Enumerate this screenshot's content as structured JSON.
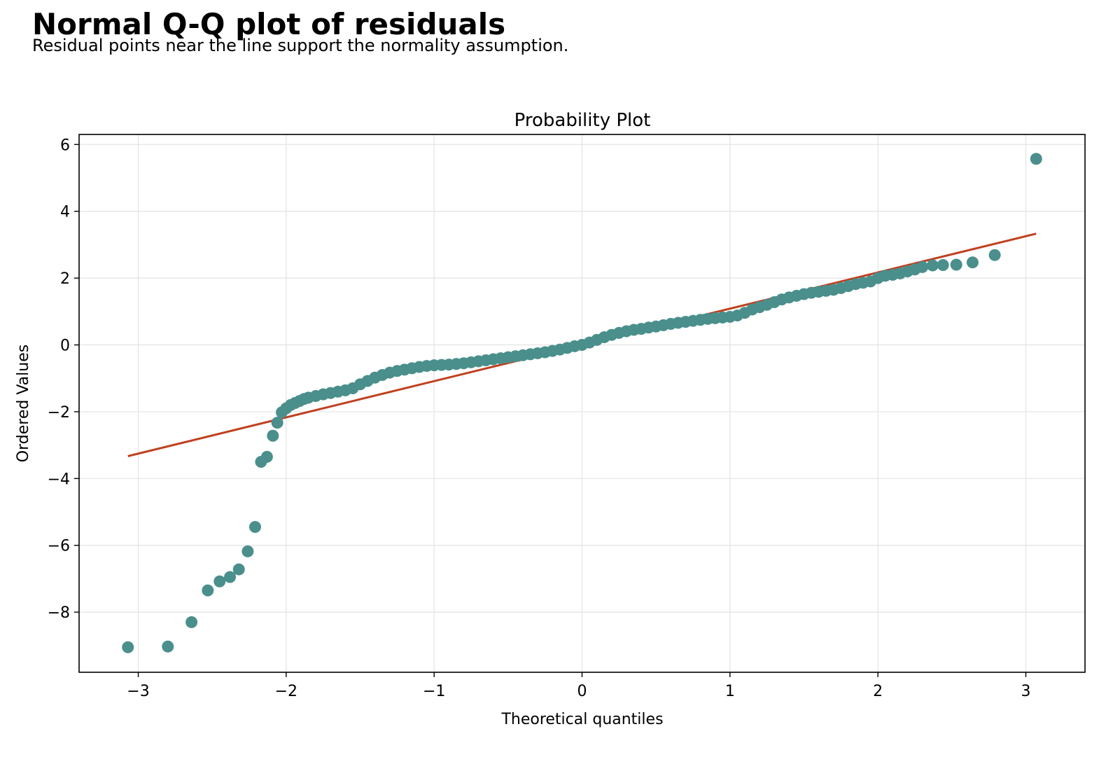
{
  "header": {
    "title": "Normal Q-Q plot of residuals",
    "subtitle": "Residual points near the line support the normality assumption."
  },
  "chart_data": {
    "type": "scatter",
    "title": "Probability Plot",
    "xlabel": "Theoretical quantiles",
    "ylabel": "Ordered Values",
    "xlim": [
      -3.4,
      3.4
    ],
    "ylim": [
      -9.8,
      6.3
    ],
    "xticks": [
      -3,
      -2,
      -1,
      0,
      1,
      2,
      3
    ],
    "yticks": [
      -8,
      -6,
      -4,
      -2,
      0,
      2,
      4,
      6
    ],
    "xtick_labels": [
      "−3",
      "−2",
      "−1",
      "0",
      "1",
      "2",
      "3"
    ],
    "ytick_labels": [
      "−8",
      "−6",
      "−4",
      "−2",
      "0",
      "2",
      "4",
      "6"
    ],
    "grid": true,
    "legend": "none",
    "colors": {
      "points": "#4a8f8c",
      "fit_line": "#c0401f"
    },
    "fit_line": {
      "x": [
        -3.07,
        3.07
      ],
      "y": [
        -3.33,
        3.33
      ]
    },
    "points": [
      [
        -3.07,
        -9.05
      ],
      [
        -2.8,
        -9.03
      ],
      [
        -2.64,
        -8.3
      ],
      [
        -2.53,
        -7.35
      ],
      [
        -2.45,
        -7.08
      ],
      [
        -2.38,
        -6.95
      ],
      [
        -2.32,
        -6.72
      ],
      [
        -2.26,
        -6.18
      ],
      [
        -2.21,
        -5.45
      ],
      [
        -2.17,
        -3.5
      ],
      [
        -2.13,
        -3.35
      ],
      [
        -2.09,
        -2.72
      ],
      [
        -2.06,
        -2.33
      ],
      [
        -2.03,
        -2.02
      ],
      [
        -2.0,
        -1.9
      ],
      [
        -1.97,
        -1.8
      ],
      [
        -1.94,
        -1.74
      ],
      [
        -1.91,
        -1.68
      ],
      [
        -1.88,
        -1.62
      ],
      [
        -1.85,
        -1.58
      ],
      [
        -1.8,
        -1.53
      ],
      [
        -1.75,
        -1.48
      ],
      [
        -1.7,
        -1.44
      ],
      [
        -1.65,
        -1.4
      ],
      [
        -1.6,
        -1.36
      ],
      [
        -1.55,
        -1.3
      ],
      [
        -1.5,
        -1.18
      ],
      [
        -1.45,
        -1.08
      ],
      [
        -1.4,
        -0.98
      ],
      [
        -1.35,
        -0.9
      ],
      [
        -1.3,
        -0.83
      ],
      [
        -1.25,
        -0.78
      ],
      [
        -1.2,
        -0.74
      ],
      [
        -1.15,
        -0.7
      ],
      [
        -1.1,
        -0.66
      ],
      [
        -1.05,
        -0.63
      ],
      [
        -1.0,
        -0.61
      ],
      [
        -0.95,
        -0.6
      ],
      [
        -0.9,
        -0.59
      ],
      [
        -0.85,
        -0.57
      ],
      [
        -0.8,
        -0.55
      ],
      [
        -0.75,
        -0.52
      ],
      [
        -0.7,
        -0.49
      ],
      [
        -0.65,
        -0.46
      ],
      [
        -0.6,
        -0.43
      ],
      [
        -0.55,
        -0.4
      ],
      [
        -0.5,
        -0.37
      ],
      [
        -0.45,
        -0.34
      ],
      [
        -0.4,
        -0.31
      ],
      [
        -0.35,
        -0.28
      ],
      [
        -0.3,
        -0.25
      ],
      [
        -0.25,
        -0.22
      ],
      [
        -0.2,
        -0.18
      ],
      [
        -0.15,
        -0.14
      ],
      [
        -0.1,
        -0.09
      ],
      [
        -0.05,
        -0.04
      ],
      [
        0.0,
        0.0
      ],
      [
        0.05,
        0.07
      ],
      [
        0.1,
        0.15
      ],
      [
        0.15,
        0.23
      ],
      [
        0.2,
        0.3
      ],
      [
        0.25,
        0.36
      ],
      [
        0.3,
        0.41
      ],
      [
        0.35,
        0.45
      ],
      [
        0.4,
        0.48
      ],
      [
        0.45,
        0.52
      ],
      [
        0.5,
        0.55
      ],
      [
        0.55,
        0.59
      ],
      [
        0.6,
        0.63
      ],
      [
        0.65,
        0.66
      ],
      [
        0.7,
        0.69
      ],
      [
        0.75,
        0.72
      ],
      [
        0.8,
        0.75
      ],
      [
        0.85,
        0.78
      ],
      [
        0.9,
        0.8
      ],
      [
        0.95,
        0.82
      ],
      [
        1.0,
        0.84
      ],
      [
        1.05,
        0.88
      ],
      [
        1.1,
        0.96
      ],
      [
        1.15,
        1.06
      ],
      [
        1.2,
        1.13
      ],
      [
        1.25,
        1.2
      ],
      [
        1.3,
        1.28
      ],
      [
        1.35,
        1.36
      ],
      [
        1.4,
        1.42
      ],
      [
        1.45,
        1.47
      ],
      [
        1.5,
        1.52
      ],
      [
        1.55,
        1.56
      ],
      [
        1.6,
        1.59
      ],
      [
        1.65,
        1.62
      ],
      [
        1.7,
        1.65
      ],
      [
        1.75,
        1.7
      ],
      [
        1.8,
        1.76
      ],
      [
        1.85,
        1.82
      ],
      [
        1.9,
        1.86
      ],
      [
        1.95,
        1.9
      ],
      [
        2.0,
        2.0
      ],
      [
        2.05,
        2.07
      ],
      [
        2.1,
        2.1
      ],
      [
        2.15,
        2.14
      ],
      [
        2.2,
        2.2
      ],
      [
        2.25,
        2.26
      ],
      [
        2.3,
        2.33
      ],
      [
        2.37,
        2.38
      ],
      [
        2.44,
        2.39
      ],
      [
        2.53,
        2.4
      ],
      [
        2.64,
        2.47
      ],
      [
        2.79,
        2.69
      ],
      [
        3.07,
        5.57
      ]
    ]
  }
}
